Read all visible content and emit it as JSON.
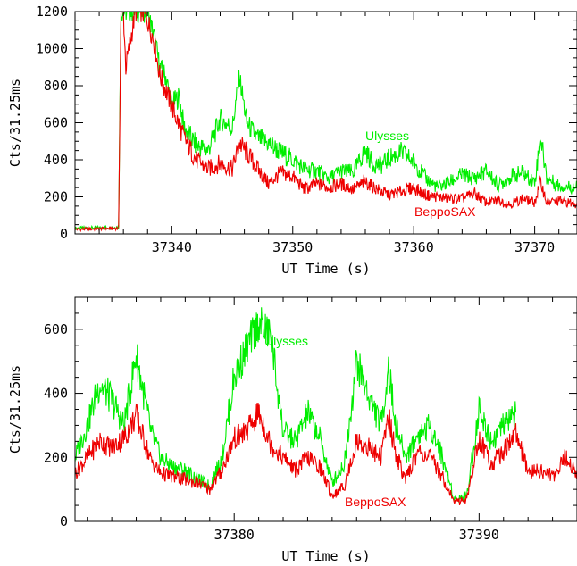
{
  "chart_data": [
    {
      "type": "line",
      "xlabel": "UT Time (s)",
      "ylabel": "Cts/31.25ms",
      "xlim": [
        37332,
        37373.5
      ],
      "ylim": [
        0,
        1200
      ],
      "xticks": [
        37340,
        37350,
        37360,
        37370
      ],
      "yticks": [
        0,
        200,
        400,
        600,
        800,
        1000,
        1200
      ],
      "series": [
        {
          "name": "Ulysses",
          "color": "#00ee00",
          "x": [
            37332,
            37335.6,
            37335.8,
            37336.0,
            37337.5,
            37338.0,
            37338.6,
            37339.0,
            37339.5,
            37340.0,
            37340.6,
            37341.0,
            37342.0,
            37343.0,
            37344.0,
            37345.0,
            37345.6,
            37346.2,
            37347.0,
            37348.0,
            37349.0,
            37350.0,
            37351.0,
            37352.0,
            37353.0,
            37354.0,
            37355.0,
            37356.0,
            37356.6,
            37357.3,
            37358.0,
            37359.0,
            37360.0,
            37361.0,
            37362.0,
            37363.0,
            37364.0,
            37365.0,
            37366.0,
            37367.0,
            37368.0,
            37369.0,
            37370.0,
            37370.5,
            37371.0,
            37372.0,
            37373.5
          ],
          "y": [
            30,
            35,
            1200,
            1200,
            1200,
            1200,
            1050,
            900,
            850,
            700,
            740,
            580,
            480,
            450,
            620,
            570,
            850,
            600,
            520,
            490,
            440,
            400,
            350,
            340,
            300,
            340,
            330,
            450,
            380,
            370,
            410,
            440,
            390,
            300,
            250,
            280,
            320,
            300,
            340,
            260,
            310,
            330,
            280,
            520,
            300,
            260,
            250
          ]
        },
        {
          "name": "BeppoSAX",
          "color": "#ee0000",
          "x": [
            37332,
            37335.6,
            37335.8,
            37336.0,
            37336.2,
            37337.0,
            37337.6,
            37338.0,
            37338.5,
            37339.0,
            37340.0,
            37341.0,
            37342.0,
            37343.0,
            37344.0,
            37345.0,
            37345.6,
            37346.2,
            37347.0,
            37348.0,
            37349.0,
            37350.0,
            37351.0,
            37352.0,
            37353.0,
            37354.0,
            37355.0,
            37356.0,
            37357.0,
            37358.0,
            37359.0,
            37360.0,
            37361.0,
            37362.0,
            37363.0,
            37364.0,
            37365.0,
            37366.0,
            37367.0,
            37368.0,
            37369.0,
            37370.0,
            37370.5,
            37371.0,
            37372.0,
            37373.5
          ],
          "y": [
            25,
            30,
            1200,
            1200,
            900,
            1200,
            1200,
            1150,
            1050,
            860,
            690,
            520,
            400,
            350,
            380,
            350,
            490,
            440,
            360,
            270,
            330,
            310,
            240,
            270,
            250,
            270,
            240,
            280,
            240,
            210,
            230,
            250,
            210,
            200,
            190,
            190,
            220,
            170,
            180,
            160,
            190,
            170,
            280,
            170,
            180,
            160
          ]
        }
      ],
      "annotations": [
        "Ulysses",
        "BeppoSAX"
      ]
    },
    {
      "type": "line",
      "xlabel": "UT Time (s)",
      "ylabel": "Cts/31.25ms",
      "xlim": [
        37373.5,
        37394
      ],
      "ylim": [
        0,
        700
      ],
      "xticks": [
        37380,
        37390
      ],
      "yticks": [
        0,
        200,
        400,
        600
      ],
      "series": [
        {
          "name": "Ulysses",
          "color": "#00ee00",
          "x": [
            37373.5,
            37374.0,
            37374.5,
            37375.0,
            37375.5,
            37376.0,
            37376.6,
            37377.0,
            37377.5,
            37378.0,
            37378.5,
            37379.0,
            37379.5,
            37380.0,
            37380.5,
            37381.0,
            37381.5,
            37382.0,
            37382.5,
            37383.0,
            37383.5,
            37384.0,
            37384.5,
            37385.0,
            37385.5,
            37386.0,
            37386.3,
            37386.6,
            37387.0,
            37387.5,
            37388.0,
            37388.5,
            37389.0,
            37389.5,
            37390.0,
            37390.5,
            37391.0,
            37391.5
          ],
          "y": [
            200,
            300,
            430,
            380,
            300,
            520,
            280,
            200,
            170,
            160,
            130,
            110,
            200,
            450,
            540,
            620,
            580,
            280,
            250,
            340,
            260,
            120,
            180,
            500,
            390,
            300,
            480,
            300,
            200,
            270,
            300,
            200,
            70,
            80,
            350,
            250,
            300,
            340
          ]
        },
        {
          "name": "BeppoSAX",
          "color": "#ee0000",
          "x": [
            37373.5,
            37374.0,
            37374.5,
            37375.0,
            37375.5,
            37376.0,
            37376.6,
            37377.0,
            37377.5,
            37378.0,
            37378.5,
            37379.0,
            37379.5,
            37380.0,
            37380.5,
            37381.0,
            37381.5,
            37382.0,
            37382.5,
            37383.0,
            37383.5,
            37384.0,
            37384.5,
            37385.0,
            37385.5,
            37386.0,
            37386.3,
            37386.6,
            37387.0,
            37387.5,
            37388.0,
            37388.5,
            37389.0,
            37389.5,
            37390.0,
            37390.5,
            37391.0,
            37391.5,
            37392.0,
            37392.5,
            37393.0,
            37393.5,
            37394.0
          ],
          "y": [
            150,
            200,
            250,
            230,
            260,
            330,
            190,
            150,
            140,
            130,
            120,
            100,
            160,
            260,
            280,
            340,
            240,
            200,
            160,
            200,
            170,
            80,
            110,
            250,
            230,
            200,
            330,
            210,
            130,
            220,
            200,
            140,
            60,
            70,
            260,
            180,
            220,
            280,
            150,
            160,
            140,
            200,
            150
          ]
        }
      ],
      "annotations": [
        "Ulysses",
        "BeppoSAX"
      ]
    }
  ]
}
